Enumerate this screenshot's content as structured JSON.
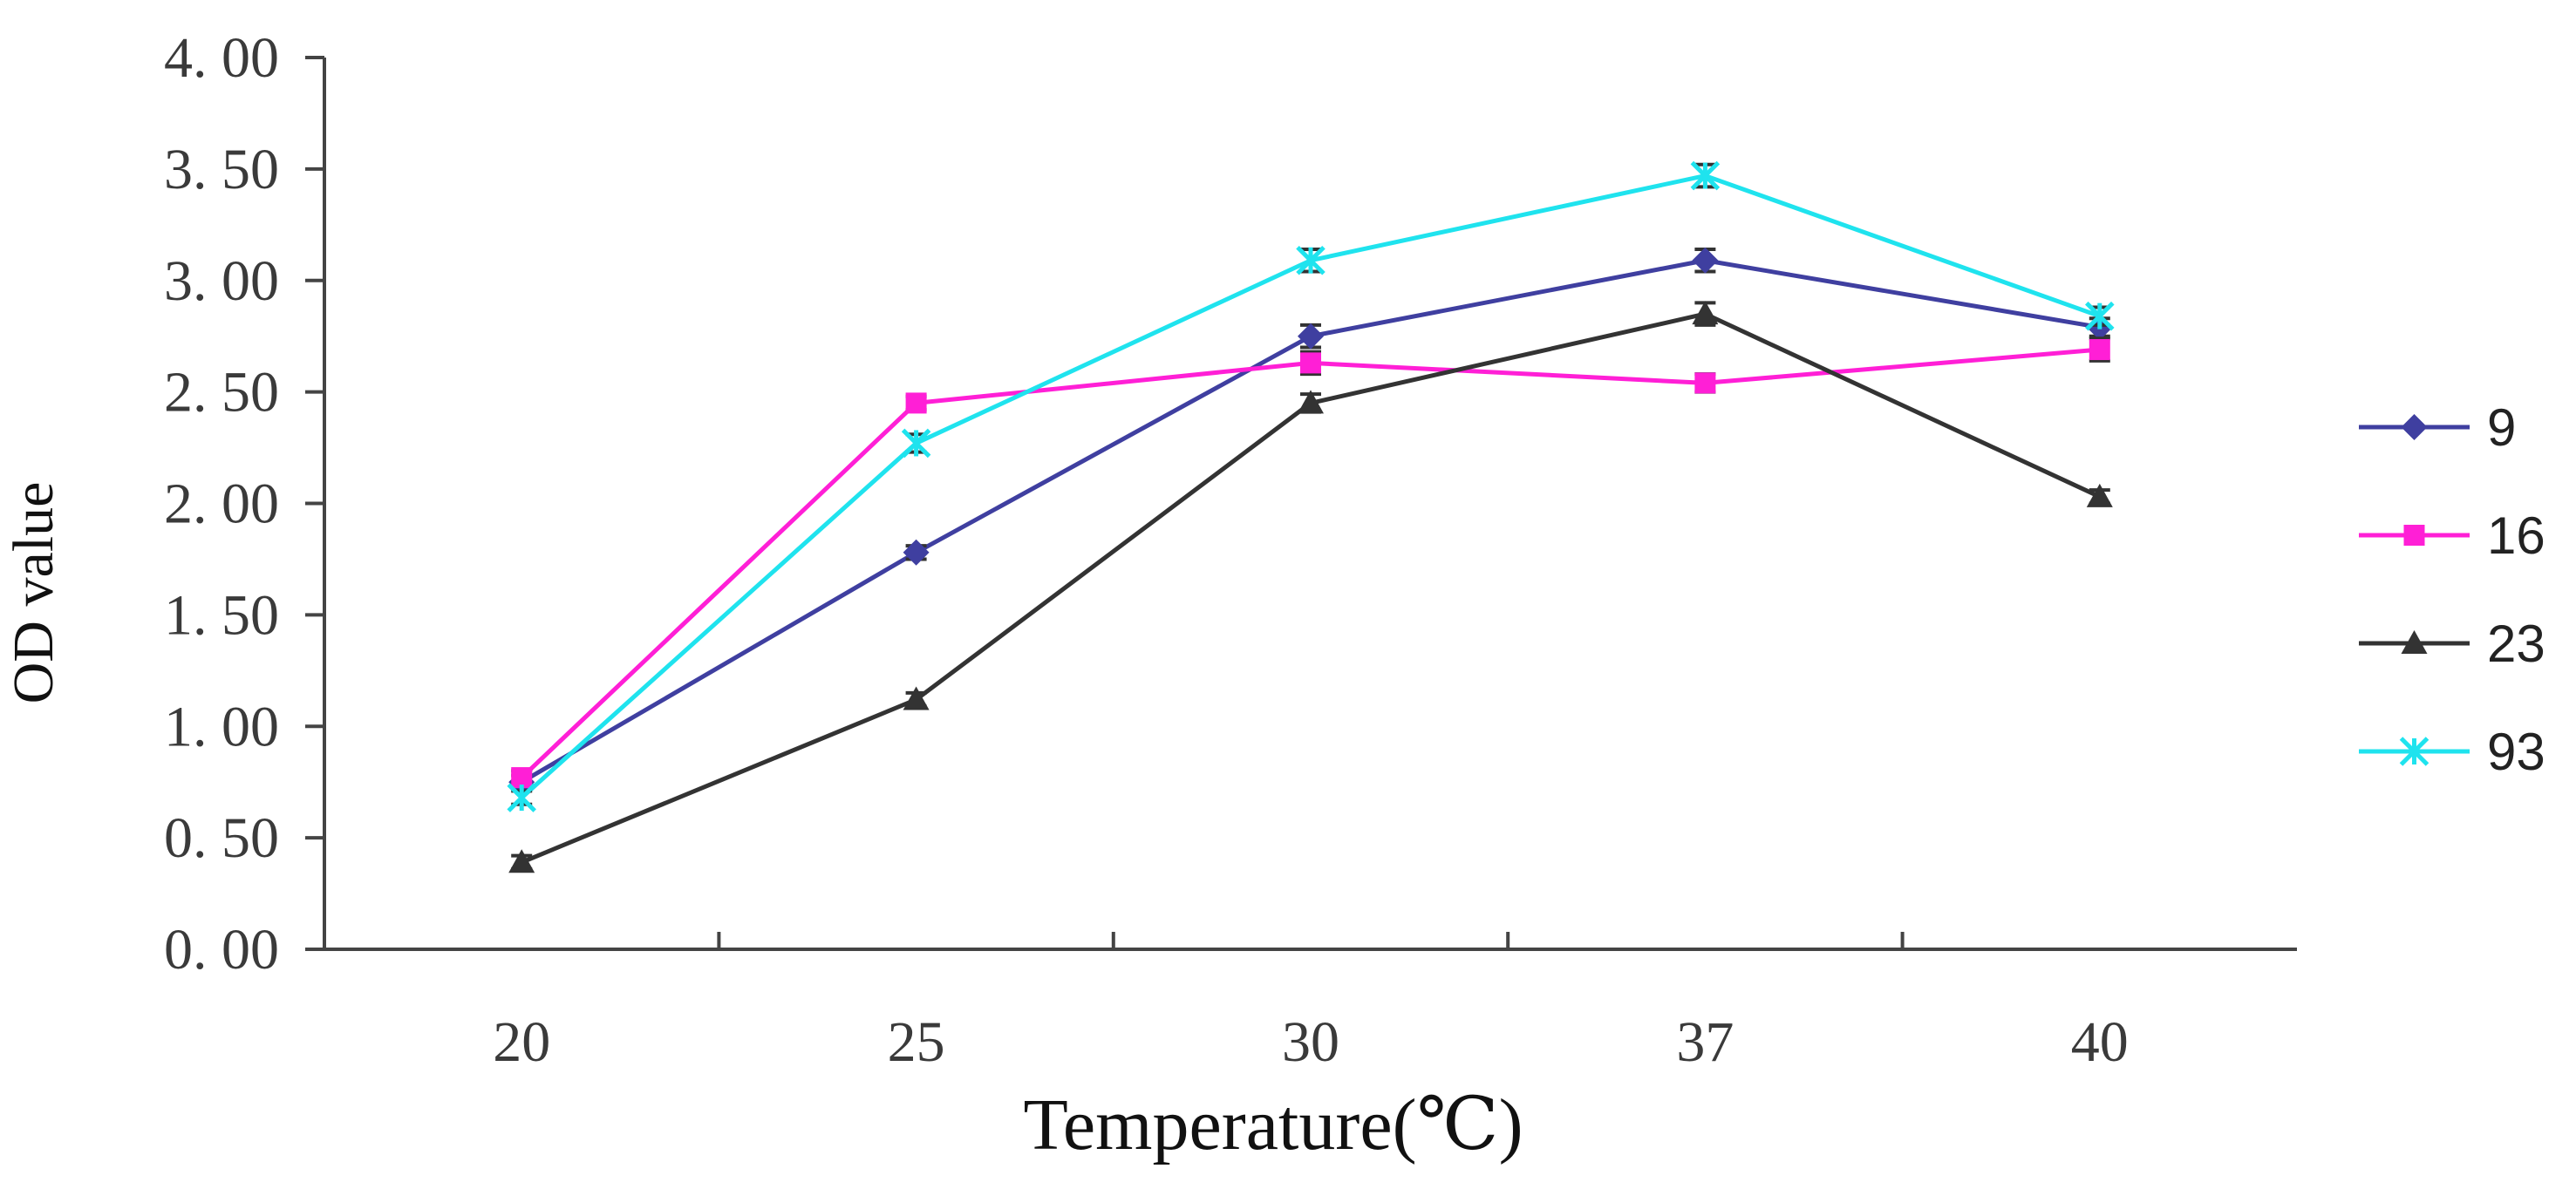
{
  "chart_data": {
    "type": "line",
    "title": "",
    "xlabel": "Temperature(℃)",
    "ylabel": "OD value",
    "categories": [
      "20",
      "25",
      "30",
      "37",
      "40"
    ],
    "ylim": [
      0,
      4
    ],
    "y_ticks": [
      "0. 00",
      "0. 50",
      "1. 00",
      "1. 50",
      "2. 00",
      "2. 50",
      "3. 00",
      "3. 50",
      "4. 00"
    ],
    "y_tick_values": [
      0,
      0.5,
      1,
      1.5,
      2,
      2.5,
      3,
      3.5,
      4
    ],
    "grid": false,
    "legend_position": "right",
    "series": [
      {
        "name": "9",
        "values": [
          0.75,
          1.78,
          2.75,
          3.09,
          2.79
        ],
        "error": [
          0.03,
          0.03,
          0.05,
          0.05,
          0.04
        ],
        "color": "#3f3fa0",
        "marker": "diamond"
      },
      {
        "name": "16",
        "values": [
          0.77,
          2.45,
          2.63,
          2.54,
          2.69
        ],
        "error": [
          0.03,
          0.03,
          0.05,
          0.04,
          0.05
        ],
        "color": "#ff1fd6",
        "marker": "square"
      },
      {
        "name": "23",
        "values": [
          0.39,
          1.12,
          2.45,
          2.85,
          2.03
        ],
        "error": [
          0.03,
          0.03,
          0.04,
          0.05,
          0.03
        ],
        "color": "#333333",
        "marker": "triangle"
      },
      {
        "name": "93",
        "values": [
          0.68,
          2.27,
          3.09,
          3.47,
          2.84
        ],
        "error": [
          0.03,
          0.04,
          0.05,
          0.05,
          0.04
        ],
        "color": "#1fe3ee",
        "marker": "star"
      }
    ],
    "axis_color": "#444444"
  }
}
